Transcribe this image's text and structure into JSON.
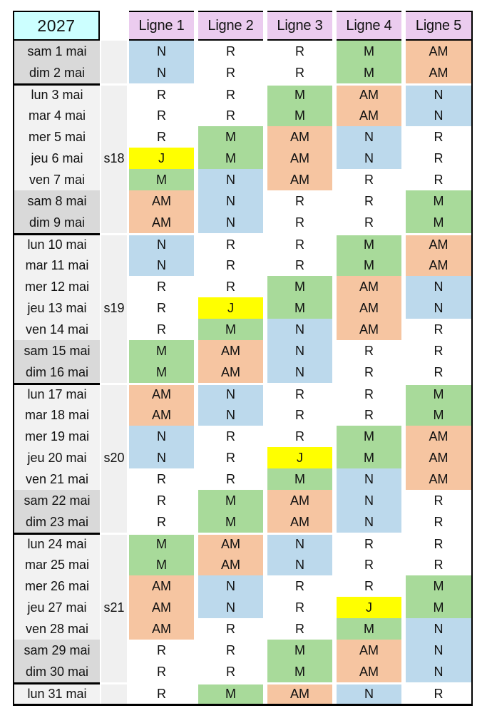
{
  "header": {
    "year": "2027",
    "columns": [
      "Ligne 1",
      "Ligne 2",
      "Ligne 3",
      "Ligne 4",
      "Ligne 5"
    ]
  },
  "colors": {
    "year_cell_bg": "#CCFFFF",
    "column_header_bg": "#EBCCEF",
    "weekday_label_bg": "#F2F2F2",
    "weekend_label_bg": "#D9D9D9",
    "week_column_bg": "#F0F0F0",
    "border": "#000000"
  },
  "codes": {
    "N": {
      "bg": "#BCD9EC"
    },
    "M": {
      "bg": "#A8DA9A"
    },
    "AM": {
      "bg": "#F6C5A1"
    },
    "J": {
      "bg": "#FFFF00"
    },
    "R": {
      "bg": "#FFFFFF"
    }
  },
  "rows": [
    {
      "day": "sam 1 mai",
      "week": "",
      "weekend": true,
      "week_start": false,
      "cells": [
        "N",
        "R",
        "R",
        "M",
        "AM"
      ]
    },
    {
      "day": "dim 2 mai",
      "week": "",
      "weekend": true,
      "week_start": false,
      "cells": [
        "N",
        "R",
        "R",
        "M",
        "AM"
      ]
    },
    {
      "day": "lun 3 mai",
      "week": "",
      "weekend": false,
      "week_start": true,
      "cells": [
        "R",
        "R",
        "M",
        "AM",
        "N"
      ]
    },
    {
      "day": "mar 4 mai",
      "week": "",
      "weekend": false,
      "week_start": false,
      "cells": [
        "R",
        "R",
        "M",
        "AM",
        "N"
      ]
    },
    {
      "day": "mer 5 mai",
      "week": "",
      "weekend": false,
      "week_start": false,
      "cells": [
        "R",
        "M",
        "AM",
        "N",
        "R"
      ]
    },
    {
      "day": "jeu 6 mai",
      "week": "s18",
      "weekend": false,
      "week_start": false,
      "cells": [
        "J",
        "M",
        "AM",
        "N",
        "R"
      ]
    },
    {
      "day": "ven 7 mai",
      "week": "",
      "weekend": false,
      "week_start": false,
      "cells": [
        "M",
        "N",
        "AM",
        "R",
        "R"
      ]
    },
    {
      "day": "sam 8 mai",
      "week": "",
      "weekend": true,
      "week_start": false,
      "cells": [
        "AM",
        "N",
        "R",
        "R",
        "M"
      ]
    },
    {
      "day": "dim 9 mai",
      "week": "",
      "weekend": true,
      "week_start": false,
      "cells": [
        "AM",
        "N",
        "R",
        "R",
        "M"
      ]
    },
    {
      "day": "lun 10 mai",
      "week": "",
      "weekend": false,
      "week_start": true,
      "cells": [
        "N",
        "R",
        "R",
        "M",
        "AM"
      ]
    },
    {
      "day": "mar 11 mai",
      "week": "",
      "weekend": false,
      "week_start": false,
      "cells": [
        "N",
        "R",
        "R",
        "M",
        "AM"
      ]
    },
    {
      "day": "mer 12 mai",
      "week": "",
      "weekend": false,
      "week_start": false,
      "cells": [
        "R",
        "R",
        "M",
        "AM",
        "N"
      ]
    },
    {
      "day": "jeu 13 mai",
      "week": "s19",
      "weekend": false,
      "week_start": false,
      "cells": [
        "R",
        "J",
        "M",
        "AM",
        "N"
      ]
    },
    {
      "day": "ven 14 mai",
      "week": "",
      "weekend": false,
      "week_start": false,
      "cells": [
        "R",
        "M",
        "N",
        "AM",
        "R"
      ]
    },
    {
      "day": "sam 15 mai",
      "week": "",
      "weekend": true,
      "week_start": false,
      "cells": [
        "M",
        "AM",
        "N",
        "R",
        "R"
      ]
    },
    {
      "day": "dim 16 mai",
      "week": "",
      "weekend": true,
      "week_start": false,
      "cells": [
        "M",
        "AM",
        "N",
        "R",
        "R"
      ]
    },
    {
      "day": "lun 17 mai",
      "week": "",
      "weekend": false,
      "week_start": true,
      "cells": [
        "AM",
        "N",
        "R",
        "R",
        "M"
      ]
    },
    {
      "day": "mar 18 mai",
      "week": "",
      "weekend": false,
      "week_start": false,
      "cells": [
        "AM",
        "N",
        "R",
        "R",
        "M"
      ]
    },
    {
      "day": "mer 19 mai",
      "week": "",
      "weekend": false,
      "week_start": false,
      "cells": [
        "N",
        "R",
        "R",
        "M",
        "AM"
      ]
    },
    {
      "day": "jeu 20 mai",
      "week": "s20",
      "weekend": false,
      "week_start": false,
      "cells": [
        "N",
        "R",
        "J",
        "M",
        "AM"
      ]
    },
    {
      "day": "ven 21 mai",
      "week": "",
      "weekend": false,
      "week_start": false,
      "cells": [
        "R",
        "R",
        "M",
        "N",
        "AM"
      ]
    },
    {
      "day": "sam 22 mai",
      "week": "",
      "weekend": true,
      "week_start": false,
      "cells": [
        "R",
        "M",
        "AM",
        "N",
        "R"
      ]
    },
    {
      "day": "dim 23 mai",
      "week": "",
      "weekend": true,
      "week_start": false,
      "cells": [
        "R",
        "M",
        "AM",
        "N",
        "R"
      ]
    },
    {
      "day": "lun 24 mai",
      "week": "",
      "weekend": false,
      "week_start": true,
      "cells": [
        "M",
        "AM",
        "N",
        "R",
        "R"
      ]
    },
    {
      "day": "mar 25 mai",
      "week": "",
      "weekend": false,
      "week_start": false,
      "cells": [
        "M",
        "AM",
        "N",
        "R",
        "R"
      ]
    },
    {
      "day": "mer 26 mai",
      "week": "",
      "weekend": false,
      "week_start": false,
      "cells": [
        "AM",
        "N",
        "R",
        "R",
        "M"
      ]
    },
    {
      "day": "jeu 27 mai",
      "week": "s21",
      "weekend": false,
      "week_start": false,
      "cells": [
        "AM",
        "N",
        "R",
        "J",
        "M"
      ]
    },
    {
      "day": "ven 28 mai",
      "week": "",
      "weekend": false,
      "week_start": false,
      "cells": [
        "AM",
        "R",
        "R",
        "M",
        "N"
      ]
    },
    {
      "day": "sam 29 mai",
      "week": "",
      "weekend": true,
      "week_start": false,
      "cells": [
        "R",
        "R",
        "M",
        "AM",
        "N"
      ]
    },
    {
      "day": "dim 30 mai",
      "week": "",
      "weekend": true,
      "week_start": false,
      "cells": [
        "R",
        "R",
        "M",
        "AM",
        "N"
      ]
    },
    {
      "day": "lun 31 mai",
      "week": "",
      "weekend": false,
      "week_start": true,
      "cells": [
        "R",
        "M",
        "AM",
        "N",
        "R"
      ]
    }
  ]
}
